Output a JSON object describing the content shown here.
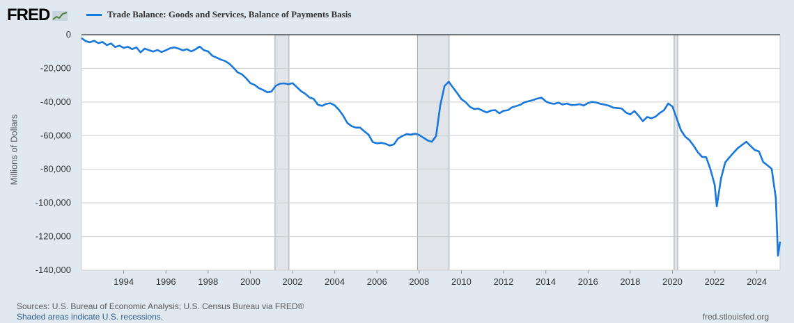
{
  "header": {
    "logo_text": "FRED",
    "series_label": "Trade Balance: Goods and Services, Balance of Payments Basis"
  },
  "footer": {
    "source": "Sources: U.S. Bureau of Economic Analysis; U.S. Census Bureau via FRED®",
    "note": "Shaded areas indicate U.S. recessions.",
    "site": "fred.stlouisfed.org"
  },
  "chart_data": {
    "type": "line",
    "title": "Trade Balance: Goods and Services, Balance of Payments Basis",
    "xlabel": "",
    "ylabel": "Millions of Dollars",
    "xlim": [
      1992,
      2025.1
    ],
    "ylim": [
      -140000,
      0
    ],
    "yticks": [
      0,
      -20000,
      -40000,
      -60000,
      -80000,
      -100000,
      -120000,
      -140000
    ],
    "ytick_labels": [
      "0",
      "-20,000",
      "-40,000",
      "-60,000",
      "-80,000",
      "-100,000",
      "-120,000",
      "-140,000"
    ],
    "xticks": [
      1994,
      1996,
      1998,
      2000,
      2002,
      2004,
      2006,
      2008,
      2010,
      2012,
      2014,
      2016,
      2018,
      2020,
      2022,
      2024
    ],
    "grid": true,
    "line_color": "#1777db",
    "recessions": [
      [
        2001.17,
        2001.83
      ],
      [
        2007.92,
        2009.42
      ],
      [
        2020.08,
        2020.25
      ]
    ],
    "recession_color": "#e1e5ea",
    "series": [
      {
        "name": "Trade Balance: Goods and Services, Balance of Payments Basis",
        "points": [
          [
            1992.0,
            -2000
          ],
          [
            1992.2,
            -3800
          ],
          [
            1992.4,
            -4500
          ],
          [
            1992.6,
            -3600
          ],
          [
            1992.8,
            -5000
          ],
          [
            1993.0,
            -4300
          ],
          [
            1993.2,
            -6200
          ],
          [
            1993.4,
            -5200
          ],
          [
            1993.6,
            -7300
          ],
          [
            1993.8,
            -6500
          ],
          [
            1994.0,
            -7800
          ],
          [
            1994.2,
            -7200
          ],
          [
            1994.4,
            -8600
          ],
          [
            1994.6,
            -7500
          ],
          [
            1994.8,
            -10500
          ],
          [
            1995.0,
            -8200
          ],
          [
            1995.2,
            -9200
          ],
          [
            1995.4,
            -10000
          ],
          [
            1995.6,
            -9100
          ],
          [
            1995.8,
            -10300
          ],
          [
            1996.0,
            -9200
          ],
          [
            1996.2,
            -8000
          ],
          [
            1996.4,
            -7500
          ],
          [
            1996.6,
            -8200
          ],
          [
            1996.8,
            -9300
          ],
          [
            1997.0,
            -8600
          ],
          [
            1997.2,
            -9900
          ],
          [
            1997.4,
            -8700
          ],
          [
            1997.6,
            -7000
          ],
          [
            1997.8,
            -9200
          ],
          [
            1998.0,
            -9900
          ],
          [
            1998.2,
            -12500
          ],
          [
            1998.4,
            -13600
          ],
          [
            1998.6,
            -14800
          ],
          [
            1998.8,
            -15600
          ],
          [
            1999.0,
            -17200
          ],
          [
            1999.2,
            -19600
          ],
          [
            1999.4,
            -22400
          ],
          [
            1999.6,
            -23500
          ],
          [
            1999.8,
            -25900
          ],
          [
            2000.0,
            -28800
          ],
          [
            2000.2,
            -29800
          ],
          [
            2000.4,
            -31700
          ],
          [
            2000.6,
            -32800
          ],
          [
            2000.8,
            -34200
          ],
          [
            2001.0,
            -33800
          ],
          [
            2001.2,
            -30400
          ],
          [
            2001.4,
            -29100
          ],
          [
            2001.6,
            -28900
          ],
          [
            2001.8,
            -29400
          ],
          [
            2002.0,
            -28800
          ],
          [
            2002.2,
            -31100
          ],
          [
            2002.4,
            -33500
          ],
          [
            2002.6,
            -35100
          ],
          [
            2002.8,
            -37300
          ],
          [
            2003.0,
            -38100
          ],
          [
            2003.2,
            -41600
          ],
          [
            2003.4,
            -42300
          ],
          [
            2003.6,
            -41100
          ],
          [
            2003.8,
            -40700
          ],
          [
            2004.0,
            -42000
          ],
          [
            2004.2,
            -44700
          ],
          [
            2004.4,
            -48100
          ],
          [
            2004.6,
            -52500
          ],
          [
            2004.8,
            -54400
          ],
          [
            2005.0,
            -55200
          ],
          [
            2005.2,
            -55200
          ],
          [
            2005.4,
            -57400
          ],
          [
            2005.6,
            -59400
          ],
          [
            2005.8,
            -63800
          ],
          [
            2006.0,
            -64600
          ],
          [
            2006.2,
            -64300
          ],
          [
            2006.4,
            -64800
          ],
          [
            2006.6,
            -65900
          ],
          [
            2006.8,
            -65200
          ],
          [
            2007.0,
            -61700
          ],
          [
            2007.2,
            -60200
          ],
          [
            2007.4,
            -59100
          ],
          [
            2007.6,
            -59400
          ],
          [
            2007.8,
            -58800
          ],
          [
            2008.0,
            -59600
          ],
          [
            2008.2,
            -61200
          ],
          [
            2008.4,
            -62800
          ],
          [
            2008.6,
            -63700
          ],
          [
            2008.8,
            -60200
          ],
          [
            2009.0,
            -42000
          ],
          [
            2009.2,
            -30500
          ],
          [
            2009.4,
            -27900
          ],
          [
            2009.6,
            -31400
          ],
          [
            2009.8,
            -34700
          ],
          [
            2010.0,
            -38300
          ],
          [
            2010.2,
            -40100
          ],
          [
            2010.4,
            -42800
          ],
          [
            2010.6,
            -44200
          ],
          [
            2010.8,
            -43900
          ],
          [
            2011.0,
            -45100
          ],
          [
            2011.2,
            -46200
          ],
          [
            2011.4,
            -45100
          ],
          [
            2011.6,
            -44800
          ],
          [
            2011.8,
            -46700
          ],
          [
            2012.0,
            -45200
          ],
          [
            2012.2,
            -44900
          ],
          [
            2012.4,
            -43100
          ],
          [
            2012.6,
            -42400
          ],
          [
            2012.8,
            -41600
          ],
          [
            2013.0,
            -40100
          ],
          [
            2013.2,
            -39500
          ],
          [
            2013.4,
            -38800
          ],
          [
            2013.6,
            -37900
          ],
          [
            2013.8,
            -37400
          ],
          [
            2014.0,
            -39600
          ],
          [
            2014.2,
            -40700
          ],
          [
            2014.4,
            -41100
          ],
          [
            2014.6,
            -40400
          ],
          [
            2014.8,
            -41500
          ],
          [
            2015.0,
            -40900
          ],
          [
            2015.2,
            -41800
          ],
          [
            2015.4,
            -41700
          ],
          [
            2015.6,
            -41300
          ],
          [
            2015.8,
            -42100
          ],
          [
            2016.0,
            -40600
          ],
          [
            2016.2,
            -39900
          ],
          [
            2016.4,
            -40300
          ],
          [
            2016.6,
            -41100
          ],
          [
            2016.8,
            -41600
          ],
          [
            2017.0,
            -42200
          ],
          [
            2017.2,
            -43400
          ],
          [
            2017.4,
            -43600
          ],
          [
            2017.6,
            -43900
          ],
          [
            2017.8,
            -46300
          ],
          [
            2018.0,
            -47400
          ],
          [
            2018.2,
            -45400
          ],
          [
            2018.4,
            -48200
          ],
          [
            2018.6,
            -51400
          ],
          [
            2018.8,
            -48900
          ],
          [
            2019.0,
            -49700
          ],
          [
            2019.2,
            -48700
          ],
          [
            2019.4,
            -46500
          ],
          [
            2019.6,
            -44900
          ],
          [
            2019.8,
            -40900
          ],
          [
            2020.0,
            -42700
          ],
          [
            2020.2,
            -49600
          ],
          [
            2020.4,
            -56700
          ],
          [
            2020.6,
            -60500
          ],
          [
            2020.8,
            -62600
          ],
          [
            2021.0,
            -65900
          ],
          [
            2021.2,
            -69800
          ],
          [
            2021.4,
            -72600
          ],
          [
            2021.6,
            -72800
          ],
          [
            2021.8,
            -80000
          ],
          [
            2022.0,
            -89200
          ],
          [
            2022.1,
            -102000
          ],
          [
            2022.3,
            -85500
          ],
          [
            2022.5,
            -76000
          ],
          [
            2022.7,
            -72900
          ],
          [
            2022.9,
            -70100
          ],
          [
            2023.1,
            -67400
          ],
          [
            2023.3,
            -65500
          ],
          [
            2023.5,
            -63700
          ],
          [
            2023.7,
            -66100
          ],
          [
            2023.9,
            -68500
          ],
          [
            2024.1,
            -69400
          ],
          [
            2024.3,
            -75700
          ],
          [
            2024.5,
            -77600
          ],
          [
            2024.7,
            -79700
          ],
          [
            2024.9,
            -97000
          ],
          [
            2025.0,
            -131400
          ],
          [
            2025.1,
            -123000
          ]
        ]
      }
    ]
  }
}
